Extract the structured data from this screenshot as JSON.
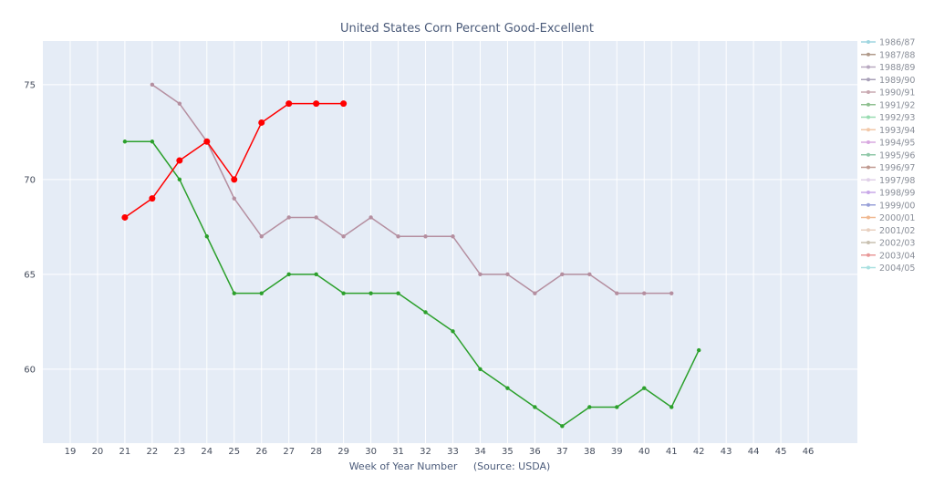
{
  "chart_data": {
    "type": "line",
    "title": "United States Corn Percent Good-Excellent",
    "xlabel": "Week of Year Number     (Source: USDA)",
    "ylabel": "",
    "xlim": [
      18,
      47.8
    ],
    "ylim": [
      56.1,
      77.3
    ],
    "x_ticks": [
      19,
      20,
      21,
      22,
      23,
      24,
      25,
      26,
      27,
      28,
      29,
      30,
      31,
      32,
      33,
      34,
      35,
      36,
      37,
      38,
      39,
      40,
      41,
      42,
      43,
      44,
      45,
      46
    ],
    "y_ticks": [
      60,
      65,
      70,
      75
    ],
    "grid": true,
    "legend_position": "right",
    "legend": [
      {
        "name": "1986/87",
        "color": "#9fd6e0"
      },
      {
        "name": "1987/88",
        "color": "#b09a8a"
      },
      {
        "name": "1988/89",
        "color": "#b8a8c0"
      },
      {
        "name": "1989/90",
        "color": "#a8a0b8"
      },
      {
        "name": "1990/91",
        "color": "#c8a8b0"
      },
      {
        "name": "1991/92",
        "color": "#8fc090"
      },
      {
        "name": "1992/93",
        "color": "#98dcb0"
      },
      {
        "name": "1993/94",
        "color": "#f2c8a8"
      },
      {
        "name": "1994/95",
        "color": "#d8a8e0"
      },
      {
        "name": "1995/96",
        "color": "#90c8a8"
      },
      {
        "name": "1996/97",
        "color": "#c09a90"
      },
      {
        "name": "1997/98",
        "color": "#e0d0e8"
      },
      {
        "name": "1998/99",
        "color": "#c8a8e8"
      },
      {
        "name": "1999/00",
        "color": "#98a0d8"
      },
      {
        "name": "2000/01",
        "color": "#f0b890"
      },
      {
        "name": "2001/02",
        "color": "#e8d0c0"
      },
      {
        "name": "2002/03",
        "color": "#c8c0b0"
      },
      {
        "name": "2003/04",
        "color": "#e89898"
      },
      {
        "name": "2004/05",
        "color": "#a8e0e0"
      }
    ],
    "series": [
      {
        "color": "#b58fa0",
        "marker_size": 2.2,
        "x": [
          22,
          23,
          24,
          25,
          26,
          27,
          28,
          29,
          30,
          31,
          32,
          33,
          34,
          35,
          36,
          37,
          38,
          39,
          40,
          41
        ],
        "y": [
          75,
          74,
          72,
          69,
          67,
          68,
          68,
          67,
          68,
          67,
          67,
          67,
          65,
          65,
          64,
          65,
          65,
          64,
          64,
          64
        ]
      },
      {
        "color": "#2ca02c",
        "marker_size": 2.2,
        "x": [
          21,
          22,
          23,
          24,
          25,
          26,
          27,
          28,
          29,
          30,
          31,
          32,
          33,
          34,
          35,
          36,
          37,
          38,
          39,
          40,
          41,
          42
        ],
        "y": [
          72,
          72,
          70,
          67,
          64,
          64,
          65,
          65,
          64,
          64,
          64,
          63,
          62,
          60,
          59,
          58,
          57,
          58,
          58,
          59,
          58,
          61
        ]
      },
      {
        "color": "#ff0000",
        "marker_size": 3.5,
        "x": [
          21,
          22,
          23,
          24,
          25,
          26,
          27,
          28,
          29
        ],
        "y": [
          68,
          69,
          71,
          72,
          70,
          73,
          74,
          74,
          74
        ]
      }
    ]
  }
}
